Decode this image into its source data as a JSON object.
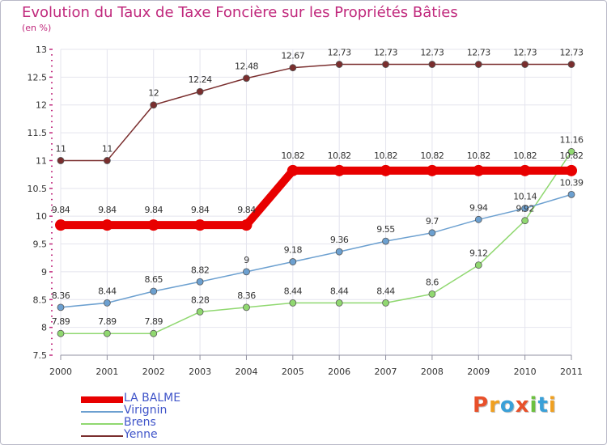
{
  "title": "Evolution du Taux de Taxe Foncière sur les Propriétés Bâties",
  "unit_label": "(en %)",
  "logo": {
    "text": "Proxiti",
    "letters": [
      "P",
      "r",
      "o",
      "x",
      "i",
      "t",
      "i"
    ],
    "colors": [
      "#e8502a",
      "#f0a020",
      "#3aa0d8",
      "#e8502a",
      "#6cc040",
      "#3aa0d8",
      "#f0a020"
    ]
  },
  "chart_data": {
    "type": "line",
    "title": "Evolution du Taux de Taxe Foncière sur les Propriétés Bâties",
    "ylabel": "(en %)",
    "xlabel": "",
    "x": [
      "2000",
      "2001",
      "2002",
      "2003",
      "2004",
      "2005",
      "2006",
      "2007",
      "2008",
      "2009",
      "2010",
      "2011"
    ],
    "ylim": [
      7.5,
      13
    ],
    "yticks": [
      "7.5",
      "8",
      "8.5",
      "9",
      "9.5",
      "10",
      "10.5",
      "11",
      "11.5",
      "12",
      "12.5",
      "13"
    ],
    "legend_position": "bottom-left",
    "series": [
      {
        "name": "LA BALME",
        "color": "#e80000",
        "labels": [
          "9.84",
          "9.84",
          "9.84",
          "9.84",
          "9.84",
          "10.82",
          "10.82",
          "10.82",
          "10.82",
          "10.82",
          "10.82",
          "10.82"
        ],
        "values": [
          9.84,
          9.84,
          9.84,
          9.84,
          9.84,
          10.82,
          10.82,
          10.82,
          10.82,
          10.82,
          10.82,
          10.82
        ]
      },
      {
        "name": "Virignin",
        "color": "#6ca0d0",
        "labels": [
          "8.36",
          "8.44",
          "8.65",
          "8.82",
          "9",
          "9.18",
          "9.36",
          "9.55",
          "9.7",
          "9.94",
          "10.14",
          "10.39"
        ],
        "values": [
          8.36,
          8.44,
          8.65,
          8.82,
          9,
          9.18,
          9.36,
          9.55,
          9.7,
          9.94,
          10.14,
          10.39
        ]
      },
      {
        "name": "Brens",
        "color": "#90d870",
        "labels": [
          "7.89",
          "7.89",
          "7.89",
          "8.28",
          "8.36",
          "8.44",
          "8.44",
          "8.44",
          "8.6",
          "9.12",
          "9.92",
          "11.16"
        ],
        "values": [
          7.89,
          7.89,
          7.89,
          8.28,
          8.36,
          8.44,
          8.44,
          8.44,
          8.6,
          9.12,
          9.92,
          11.16
        ]
      },
      {
        "name": "Yenne",
        "color": "#7a2e2e",
        "labels": [
          "11",
          "11",
          "12",
          "12.24",
          "12.48",
          "12.67",
          "12.73",
          "12.73",
          "12.73",
          "12.73",
          "12.73",
          "12.73"
        ],
        "values": [
          11,
          11,
          12,
          12.24,
          12.48,
          12.67,
          12.73,
          12.73,
          12.73,
          12.73,
          12.73,
          12.73
        ]
      }
    ]
  }
}
